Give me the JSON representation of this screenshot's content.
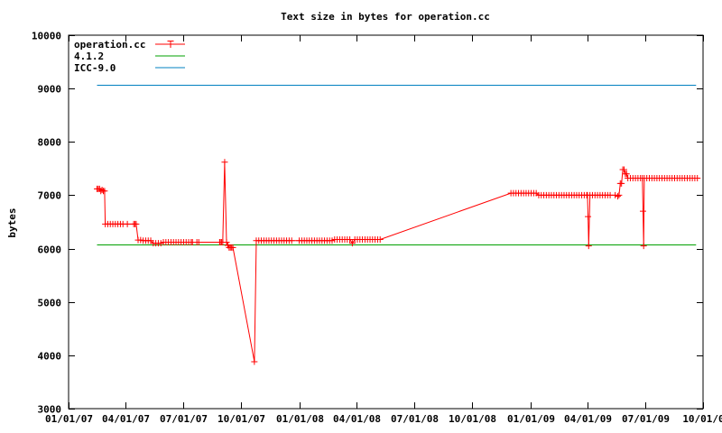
{
  "chart_data": {
    "type": "line",
    "title": "Text size in bytes for operation.cc",
    "xlabel": "",
    "ylabel": "bytes",
    "ylim": [
      3000,
      10000
    ],
    "xlim": [
      "2007-01-01",
      "2009-10-01"
    ],
    "grid": false,
    "legend_position": "top-left",
    "yticks": [
      3000,
      4000,
      5000,
      6000,
      7000,
      8000,
      9000,
      10000
    ],
    "xticks": [
      {
        "date": "2007-01-01",
        "label": "01/01/07"
      },
      {
        "date": "2007-04-01",
        "label": "04/01/07"
      },
      {
        "date": "2007-07-01",
        "label": "07/01/07"
      },
      {
        "date": "2007-10-01",
        "label": "10/01/07"
      },
      {
        "date": "2008-01-01",
        "label": "01/01/08"
      },
      {
        "date": "2008-04-01",
        "label": "04/01/08"
      },
      {
        "date": "2008-07-01",
        "label": "07/01/08"
      },
      {
        "date": "2008-10-01",
        "label": "10/01/08"
      },
      {
        "date": "2009-01-01",
        "label": "01/01/09"
      },
      {
        "date": "2009-04-01",
        "label": "04/01/09"
      },
      {
        "date": "2009-07-01",
        "label": "07/01/09"
      },
      {
        "date": "2009-10-01",
        "label": "10/01/0"
      }
    ],
    "series": [
      {
        "name": "operation.cc",
        "color": "#ff0000",
        "style": "line-with-plus-markers",
        "points": [
          [
            "2007-02-15",
            7120
          ],
          [
            "2007-02-17",
            7120
          ],
          [
            "2007-02-19",
            7120
          ],
          [
            "2007-02-21",
            7080
          ],
          [
            "2007-02-23",
            7100
          ],
          [
            "2007-02-25",
            7080
          ],
          [
            "2007-02-27",
            7080
          ],
          [
            "2007-02-28",
            6460
          ],
          [
            "2007-03-04",
            6460
          ],
          [
            "2007-03-08",
            6460
          ],
          [
            "2007-03-12",
            6460
          ],
          [
            "2007-03-16",
            6460
          ],
          [
            "2007-03-20",
            6460
          ],
          [
            "2007-03-24",
            6460
          ],
          [
            "2007-03-28",
            6460
          ],
          [
            "2007-04-04",
            6460
          ],
          [
            "2007-04-14",
            6460
          ],
          [
            "2007-04-16",
            6460
          ],
          [
            "2007-04-18",
            6460
          ],
          [
            "2007-04-21",
            6160
          ],
          [
            "2007-04-25",
            6160
          ],
          [
            "2007-04-29",
            6150
          ],
          [
            "2007-05-03",
            6150
          ],
          [
            "2007-05-07",
            6150
          ],
          [
            "2007-05-11",
            6150
          ],
          [
            "2007-05-15",
            6100
          ],
          [
            "2007-05-19",
            6100
          ],
          [
            "2007-05-23",
            6100
          ],
          [
            "2007-05-27",
            6100
          ],
          [
            "2007-05-31",
            6120
          ],
          [
            "2007-06-04",
            6120
          ],
          [
            "2007-06-08",
            6120
          ],
          [
            "2007-06-12",
            6120
          ],
          [
            "2007-06-16",
            6120
          ],
          [
            "2007-06-20",
            6120
          ],
          [
            "2007-06-24",
            6120
          ],
          [
            "2007-06-28",
            6120
          ],
          [
            "2007-07-02",
            6120
          ],
          [
            "2007-07-06",
            6120
          ],
          [
            "2007-07-10",
            6120
          ],
          [
            "2007-07-14",
            6120
          ],
          [
            "2007-07-16",
            6120
          ],
          [
            "2007-07-23",
            6120
          ],
          [
            "2007-07-26",
            6120
          ],
          [
            "2007-08-28",
            6120
          ],
          [
            "2007-08-29",
            6120
          ],
          [
            "2007-08-31",
            6120
          ],
          [
            "2007-09-02",
            6120
          ],
          [
            "2007-09-05",
            7620
          ],
          [
            "2007-09-08",
            6120
          ],
          [
            "2007-09-10",
            6060
          ],
          [
            "2007-09-12",
            6020
          ],
          [
            "2007-09-14",
            6020
          ],
          [
            "2007-09-16",
            6020
          ],
          [
            "2007-09-18",
            6020
          ],
          [
            "2007-10-22",
            3880
          ],
          [
            "2007-10-25",
            6150
          ],
          [
            "2007-10-29",
            6150
          ],
          [
            "2007-11-02",
            6150
          ],
          [
            "2007-11-06",
            6150
          ],
          [
            "2007-11-10",
            6150
          ],
          [
            "2007-11-14",
            6150
          ],
          [
            "2007-11-18",
            6150
          ],
          [
            "2007-11-22",
            6150
          ],
          [
            "2007-11-26",
            6150
          ],
          [
            "2007-11-30",
            6150
          ],
          [
            "2007-12-04",
            6150
          ],
          [
            "2007-12-08",
            6150
          ],
          [
            "2007-12-12",
            6150
          ],
          [
            "2007-12-16",
            6150
          ],
          [
            "2007-12-20",
            6150
          ],
          [
            "2008-01-01",
            6150
          ],
          [
            "2008-01-05",
            6150
          ],
          [
            "2008-01-09",
            6150
          ],
          [
            "2008-01-13",
            6150
          ],
          [
            "2008-01-17",
            6150
          ],
          [
            "2008-01-21",
            6150
          ],
          [
            "2008-01-25",
            6150
          ],
          [
            "2008-01-29",
            6150
          ],
          [
            "2008-02-02",
            6150
          ],
          [
            "2008-02-06",
            6150
          ],
          [
            "2008-02-10",
            6150
          ],
          [
            "2008-02-14",
            6150
          ],
          [
            "2008-02-18",
            6150
          ],
          [
            "2008-02-22",
            6150
          ],
          [
            "2008-02-26",
            6170
          ],
          [
            "2008-03-01",
            6170
          ],
          [
            "2008-03-05",
            6170
          ],
          [
            "2008-03-09",
            6170
          ],
          [
            "2008-03-13",
            6170
          ],
          [
            "2008-03-17",
            6170
          ],
          [
            "2008-03-21",
            6170
          ],
          [
            "2008-03-25",
            6100
          ],
          [
            "2008-03-29",
            6170
          ],
          [
            "2008-04-02",
            6170
          ],
          [
            "2008-04-06",
            6170
          ],
          [
            "2008-04-10",
            6170
          ],
          [
            "2008-04-14",
            6170
          ],
          [
            "2008-04-18",
            6170
          ],
          [
            "2008-04-22",
            6170
          ],
          [
            "2008-04-26",
            6170
          ],
          [
            "2008-04-30",
            6170
          ],
          [
            "2008-05-04",
            6170
          ],
          [
            "2008-05-08",
            6170
          ],
          [
            "2008-12-01",
            7040
          ],
          [
            "2008-12-05",
            7040
          ],
          [
            "2008-12-09",
            7040
          ],
          [
            "2008-12-13",
            7040
          ],
          [
            "2008-12-17",
            7040
          ],
          [
            "2008-12-21",
            7040
          ],
          [
            "2008-12-25",
            7040
          ],
          [
            "2008-12-29",
            7040
          ],
          [
            "2009-01-02",
            7040
          ],
          [
            "2009-01-06",
            7040
          ],
          [
            "2009-01-10",
            7040
          ],
          [
            "2009-01-14",
            7000
          ],
          [
            "2009-01-18",
            7000
          ],
          [
            "2009-01-22",
            7000
          ],
          [
            "2009-01-26",
            7000
          ],
          [
            "2009-01-30",
            7000
          ],
          [
            "2009-02-03",
            7000
          ],
          [
            "2009-02-07",
            7000
          ],
          [
            "2009-02-11",
            7000
          ],
          [
            "2009-02-15",
            7000
          ],
          [
            "2009-02-19",
            7000
          ],
          [
            "2009-02-23",
            7000
          ],
          [
            "2009-02-27",
            7000
          ],
          [
            "2009-03-03",
            7000
          ],
          [
            "2009-03-07",
            7000
          ],
          [
            "2009-03-11",
            7000
          ],
          [
            "2009-03-15",
            7000
          ],
          [
            "2009-03-19",
            7000
          ],
          [
            "2009-03-23",
            7000
          ],
          [
            "2009-03-27",
            7000
          ],
          [
            "2009-03-31",
            7000
          ],
          [
            "2009-04-01",
            7000
          ],
          [
            "2009-04-02",
            6600
          ],
          [
            "2009-04-03",
            6050
          ],
          [
            "2009-04-05",
            7000
          ],
          [
            "2009-04-09",
            7000
          ],
          [
            "2009-04-13",
            7000
          ],
          [
            "2009-04-17",
            7000
          ],
          [
            "2009-04-21",
            7000
          ],
          [
            "2009-04-25",
            7000
          ],
          [
            "2009-04-29",
            7000
          ],
          [
            "2009-05-03",
            7000
          ],
          [
            "2009-05-07",
            7000
          ],
          [
            "2009-05-15",
            7000
          ],
          [
            "2009-05-19",
            6980
          ],
          [
            "2009-05-21",
            7000
          ],
          [
            "2009-05-23",
            7220
          ],
          [
            "2009-05-25",
            7220
          ],
          [
            "2009-05-27",
            7480
          ],
          [
            "2009-05-29",
            7480
          ],
          [
            "2009-05-31",
            7400
          ],
          [
            "2009-06-02",
            7400
          ],
          [
            "2009-06-04",
            7320
          ],
          [
            "2009-06-08",
            7320
          ],
          [
            "2009-06-12",
            7320
          ],
          [
            "2009-06-16",
            7320
          ],
          [
            "2009-06-20",
            7320
          ],
          [
            "2009-06-24",
            7320
          ],
          [
            "2009-06-27",
            7320
          ],
          [
            "2009-06-28",
            6700
          ],
          [
            "2009-06-29",
            6050
          ],
          [
            "2009-06-30",
            7320
          ],
          [
            "2009-07-04",
            7320
          ],
          [
            "2009-07-08",
            7320
          ],
          [
            "2009-07-12",
            7320
          ],
          [
            "2009-07-16",
            7320
          ],
          [
            "2009-07-20",
            7320
          ],
          [
            "2009-07-24",
            7320
          ],
          [
            "2009-07-28",
            7320
          ],
          [
            "2009-08-01",
            7320
          ],
          [
            "2009-08-05",
            7320
          ],
          [
            "2009-08-09",
            7320
          ],
          [
            "2009-08-13",
            7320
          ],
          [
            "2009-08-17",
            7320
          ],
          [
            "2009-08-21",
            7320
          ],
          [
            "2009-08-25",
            7320
          ],
          [
            "2009-08-29",
            7320
          ],
          [
            "2009-09-02",
            7320
          ],
          [
            "2009-09-06",
            7320
          ],
          [
            "2009-09-10",
            7320
          ],
          [
            "2009-09-14",
            7320
          ],
          [
            "2009-09-18",
            7320
          ],
          [
            "2009-09-22",
            7320
          ]
        ]
      },
      {
        "name": "4.1.2",
        "color": "#00a000",
        "style": "line",
        "points": [
          [
            "2007-02-15",
            6080
          ],
          [
            "2009-09-20",
            6080
          ]
        ]
      },
      {
        "name": "ICC-9.0",
        "color": "#0080c0",
        "style": "line",
        "points": [
          [
            "2007-02-15",
            9070
          ],
          [
            "2009-09-20",
            9070
          ]
        ]
      }
    ]
  }
}
